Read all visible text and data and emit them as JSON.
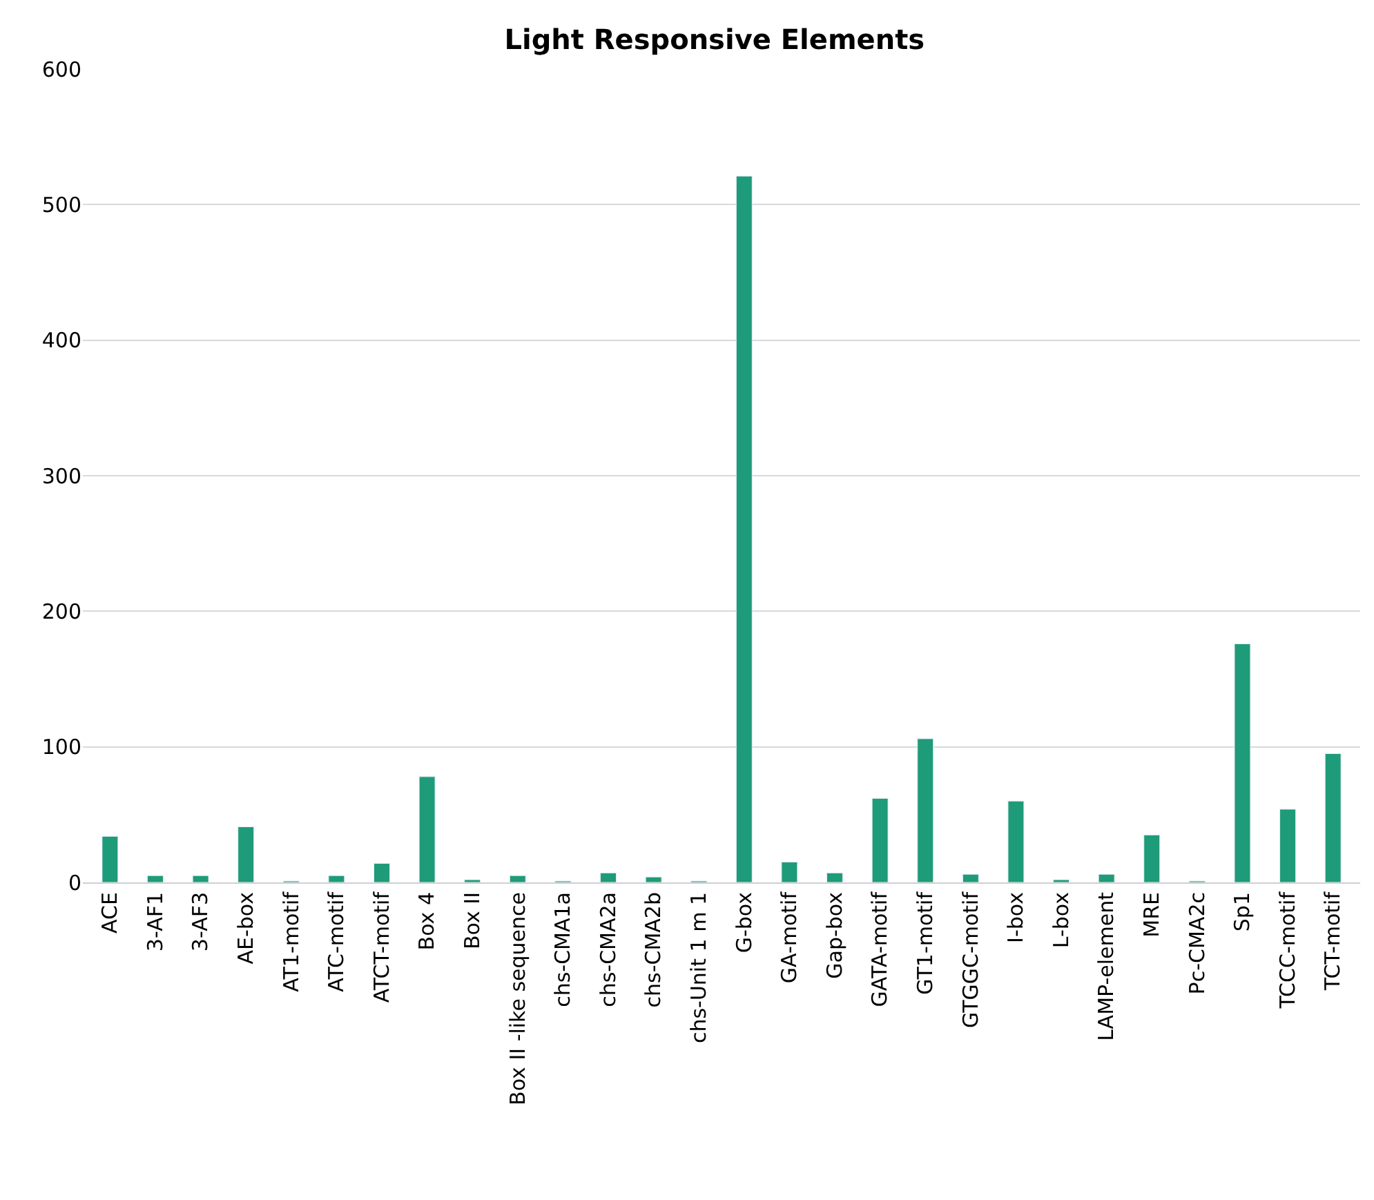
{
  "chart_data": {
    "type": "bar",
    "title": "Light Responsive Elements",
    "categories": [
      "ACE",
      "3-AF1",
      "3-AF3",
      "AE-box",
      "AT1-motif",
      "ATC-motif",
      "ATCT-motif",
      "Box 4",
      "Box II",
      "Box II -like sequence",
      "chs-CMA1a",
      "chs-CMA2a",
      "chs-CMA2b",
      "chs-Unit 1 m 1",
      "G-box",
      "GA-motif",
      "Gap-box",
      "GATA-motif",
      "GT1-motif",
      "GTGGC-motif",
      "I-box",
      "L-box",
      "LAMP-element",
      "MRE",
      "Pc-CMA2c",
      "Sp1",
      "TCCC-motif",
      "TCT-motif"
    ],
    "values": [
      34,
      5,
      5,
      41,
      1,
      5,
      14,
      78,
      2,
      5,
      1,
      7,
      4,
      1,
      521,
      15,
      7,
      62,
      106,
      6,
      60,
      2,
      6,
      35,
      1,
      176,
      54,
      95
    ],
    "color": "#1e9b78",
    "ylim": [
      0,
      600
    ],
    "yticks": [
      0,
      100,
      200,
      300,
      400,
      500,
      600
    ],
    "grid": "y"
  }
}
